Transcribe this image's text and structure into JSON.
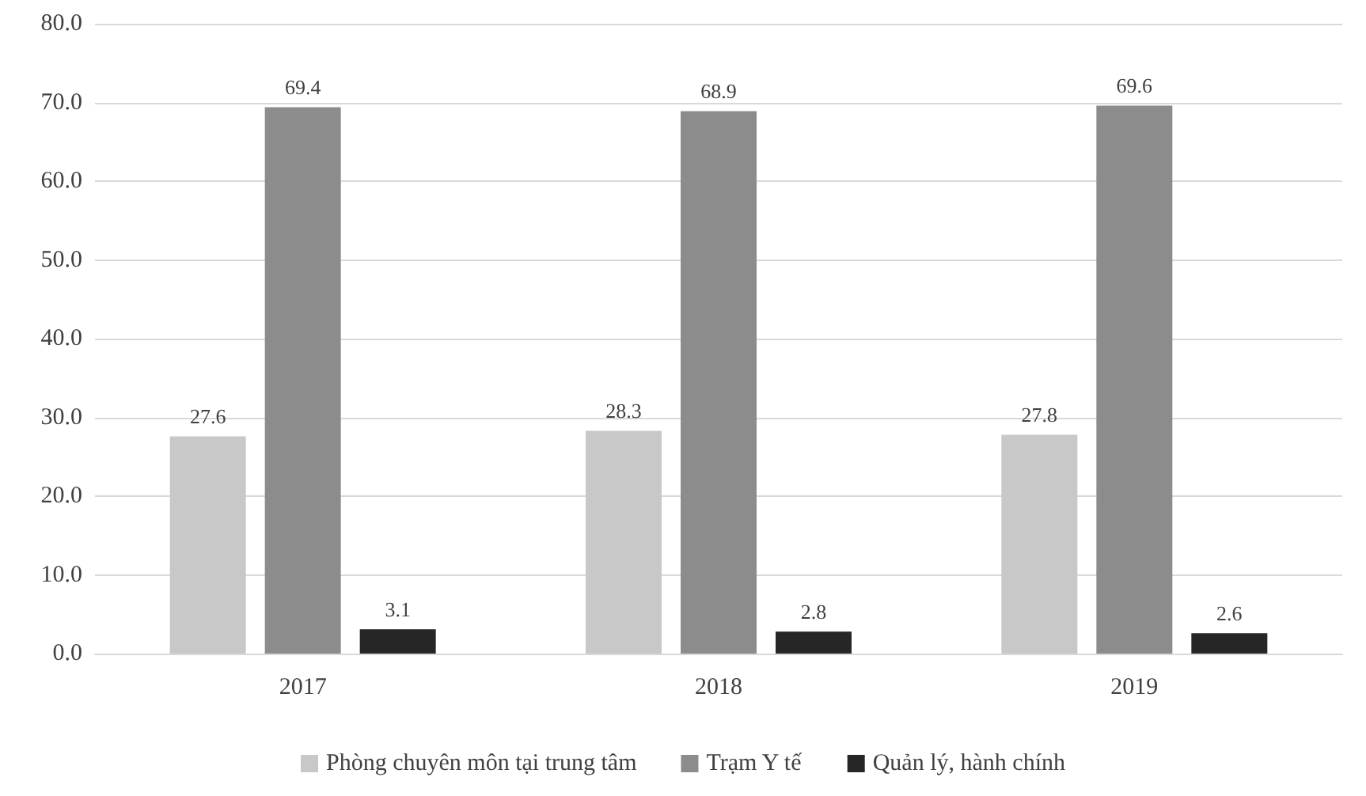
{
  "chart_data": {
    "type": "bar",
    "categories": [
      "2017",
      "2018",
      "2019"
    ],
    "series": [
      {
        "name": "Phòng chuyên môn tại trung tâm",
        "color": "#c8c8c8",
        "values": [
          27.6,
          28.3,
          27.8
        ]
      },
      {
        "name": "Trạm Y tế",
        "color": "#8c8c8c",
        "values": [
          69.4,
          68.9,
          69.6
        ]
      },
      {
        "name": "Quản lý, hành chính",
        "color": "#262626",
        "values": [
          3.1,
          2.8,
          2.6
        ]
      }
    ],
    "ylim": [
      0,
      80
    ],
    "yticks": [
      {
        "value": 0,
        "label": "0.0"
      },
      {
        "value": 10,
        "label": "10.0"
      },
      {
        "value": 20,
        "label": "20.0"
      },
      {
        "value": 30,
        "label": "30.0"
      },
      {
        "value": 40,
        "label": "40.0"
      },
      {
        "value": 50,
        "label": "50.0"
      },
      {
        "value": 60,
        "label": "60.0"
      },
      {
        "value": 70,
        "label": "70.0"
      },
      {
        "value": 80,
        "label": "80.0"
      }
    ],
    "grid": "y",
    "legend": "bottom",
    "data_labels": true
  }
}
